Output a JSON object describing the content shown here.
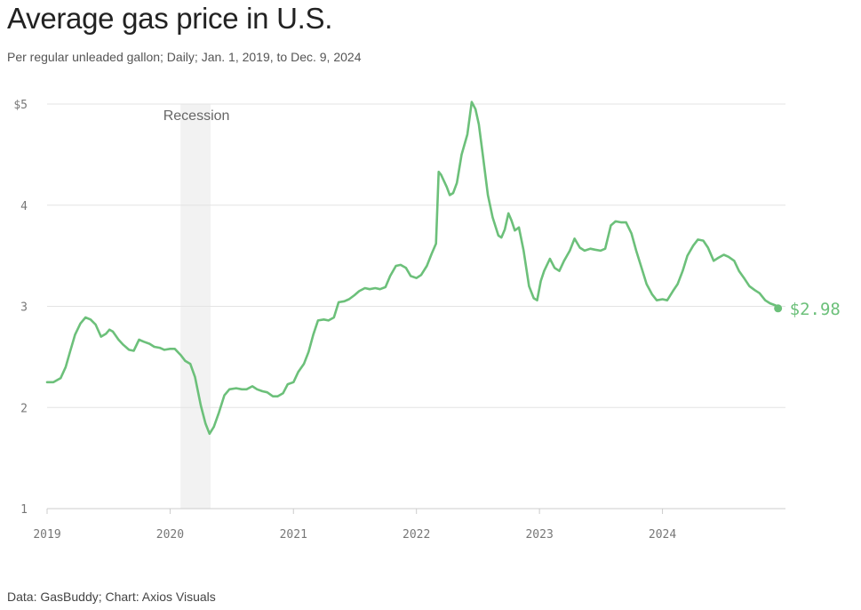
{
  "title": "Average gas price in U.S.",
  "subtitle": "Per regular unleaded gallon; Daily; Jan. 1, 2019, to Dec. 9, 2024",
  "source": "Data: GasBuddy; Chart: Axios Visuals",
  "colors": {
    "line": "#6cc07a",
    "band": "#f2f2f2",
    "grid": "#e3e3e3",
    "axis": "#cccccc"
  },
  "chart_data": {
    "type": "line",
    "title": "Average gas price in U.S.",
    "ylim": [
      1,
      5
    ],
    "y_ticks": [
      1,
      2,
      3,
      4,
      5
    ],
    "y_tick_labels": [
      "1",
      "2",
      "3",
      "4",
      "$5"
    ],
    "x_ticks": [
      "2019-01-01",
      "2020-01-01",
      "2021-01-01",
      "2022-01-01",
      "2023-01-01",
      "2024-01-01"
    ],
    "x_tick_labels": [
      "2019",
      "2020",
      "2021",
      "2022",
      "2023",
      "2024"
    ],
    "x_range": [
      "2019-01-01",
      "2024-12-09"
    ],
    "grid": true,
    "annotations": [
      {
        "type": "band",
        "label": "Recession",
        "start": "2020-02-01",
        "end": "2020-04-30"
      }
    ],
    "end_label": "$2.98",
    "series": [
      {
        "x": [
          "2019-01-01",
          "2019-01-20",
          "2019-02-10",
          "2019-02-25",
          "2019-03-10",
          "2019-03-25",
          "2019-04-10",
          "2019-04-25",
          "2019-05-10",
          "2019-05-25",
          "2019-06-10",
          "2019-06-25",
          "2019-07-05",
          "2019-07-15",
          "2019-08-01",
          "2019-08-15",
          "2019-09-01",
          "2019-09-15",
          "2019-10-01",
          "2019-10-15",
          "2019-11-01",
          "2019-11-15",
          "2019-12-01",
          "2019-12-15",
          "2020-01-01",
          "2020-01-15",
          "2020-02-01",
          "2020-02-15",
          "2020-03-01",
          "2020-03-15",
          "2020-04-01",
          "2020-04-15",
          "2020-04-27",
          "2020-05-10",
          "2020-05-25",
          "2020-06-10",
          "2020-06-25",
          "2020-07-15",
          "2020-08-01",
          "2020-08-15",
          "2020-09-01",
          "2020-09-15",
          "2020-10-01",
          "2020-10-15",
          "2020-11-01",
          "2020-11-15",
          "2020-12-01",
          "2020-12-15",
          "2021-01-01",
          "2021-01-15",
          "2021-02-01",
          "2021-02-15",
          "2021-03-01",
          "2021-03-15",
          "2021-04-01",
          "2021-04-15",
          "2021-05-01",
          "2021-05-15",
          "2021-06-01",
          "2021-06-15",
          "2021-07-01",
          "2021-07-15",
          "2021-08-01",
          "2021-08-15",
          "2021-09-01",
          "2021-09-15",
          "2021-10-01",
          "2021-10-15",
          "2021-11-01",
          "2021-11-15",
          "2021-12-01",
          "2021-12-15",
          "2022-01-01",
          "2022-01-15",
          "2022-02-01",
          "2022-02-15",
          "2022-02-28",
          "2022-03-08",
          "2022-03-15",
          "2022-04-01",
          "2022-04-10",
          "2022-04-20",
          "2022-05-01",
          "2022-05-15",
          "2022-06-01",
          "2022-06-14",
          "2022-06-25",
          "2022-07-05",
          "2022-07-15",
          "2022-08-01",
          "2022-08-15",
          "2022-09-01",
          "2022-09-10",
          "2022-09-20",
          "2022-10-01",
          "2022-10-10",
          "2022-10-20",
          "2022-11-01",
          "2022-11-15",
          "2022-12-01",
          "2022-12-15",
          "2022-12-25",
          "2023-01-05",
          "2023-01-15",
          "2023-02-01",
          "2023-02-15",
          "2023-03-01",
          "2023-03-15",
          "2023-04-01",
          "2023-04-15",
          "2023-05-01",
          "2023-05-15",
          "2023-06-01",
          "2023-06-15",
          "2023-07-01",
          "2023-07-15",
          "2023-08-01",
          "2023-08-15",
          "2023-09-01",
          "2023-09-15",
          "2023-10-01",
          "2023-10-15",
          "2023-11-01",
          "2023-11-15",
          "2023-12-01",
          "2023-12-15",
          "2024-01-01",
          "2024-01-15",
          "2024-02-01",
          "2024-02-15",
          "2024-03-01",
          "2024-03-15",
          "2024-04-01",
          "2024-04-15",
          "2024-05-01",
          "2024-05-15",
          "2024-06-01",
          "2024-06-15",
          "2024-07-01",
          "2024-07-15",
          "2024-08-01",
          "2024-08-15",
          "2024-09-01",
          "2024-09-15",
          "2024-10-01",
          "2024-10-15",
          "2024-11-01",
          "2024-11-15",
          "2024-12-01",
          "2024-12-09"
        ],
        "values": [
          2.25,
          2.25,
          2.29,
          2.4,
          2.55,
          2.72,
          2.83,
          2.89,
          2.87,
          2.82,
          2.7,
          2.73,
          2.77,
          2.75,
          2.67,
          2.62,
          2.57,
          2.56,
          2.67,
          2.65,
          2.63,
          2.6,
          2.59,
          2.57,
          2.58,
          2.58,
          2.52,
          2.46,
          2.43,
          2.3,
          2.02,
          1.84,
          1.74,
          1.81,
          1.95,
          2.12,
          2.18,
          2.19,
          2.18,
          2.18,
          2.21,
          2.18,
          2.16,
          2.15,
          2.11,
          2.11,
          2.14,
          2.23,
          2.25,
          2.35,
          2.43,
          2.55,
          2.72,
          2.86,
          2.87,
          2.86,
          2.89,
          3.04,
          3.05,
          3.07,
          3.11,
          3.15,
          3.18,
          3.17,
          3.18,
          3.17,
          3.19,
          3.3,
          3.4,
          3.41,
          3.38,
          3.3,
          3.28,
          3.31,
          3.4,
          3.52,
          3.62,
          4.33,
          4.3,
          4.18,
          4.1,
          4.12,
          4.22,
          4.5,
          4.7,
          5.02,
          4.95,
          4.8,
          4.55,
          4.1,
          3.88,
          3.7,
          3.68,
          3.76,
          3.92,
          3.85,
          3.75,
          3.78,
          3.55,
          3.2,
          3.08,
          3.06,
          3.25,
          3.35,
          3.47,
          3.38,
          3.35,
          3.45,
          3.55,
          3.67,
          3.58,
          3.55,
          3.57,
          3.56,
          3.55,
          3.57,
          3.8,
          3.84,
          3.83,
          3.83,
          3.72,
          3.55,
          3.37,
          3.22,
          3.12,
          3.06,
          3.07,
          3.06,
          3.15,
          3.22,
          3.35,
          3.5,
          3.6,
          3.66,
          3.65,
          3.58,
          3.45,
          3.48,
          3.51,
          3.49,
          3.45,
          3.35,
          3.27,
          3.2,
          3.16,
          3.13,
          3.06,
          3.03,
          3.01,
          2.98
        ]
      }
    ]
  }
}
